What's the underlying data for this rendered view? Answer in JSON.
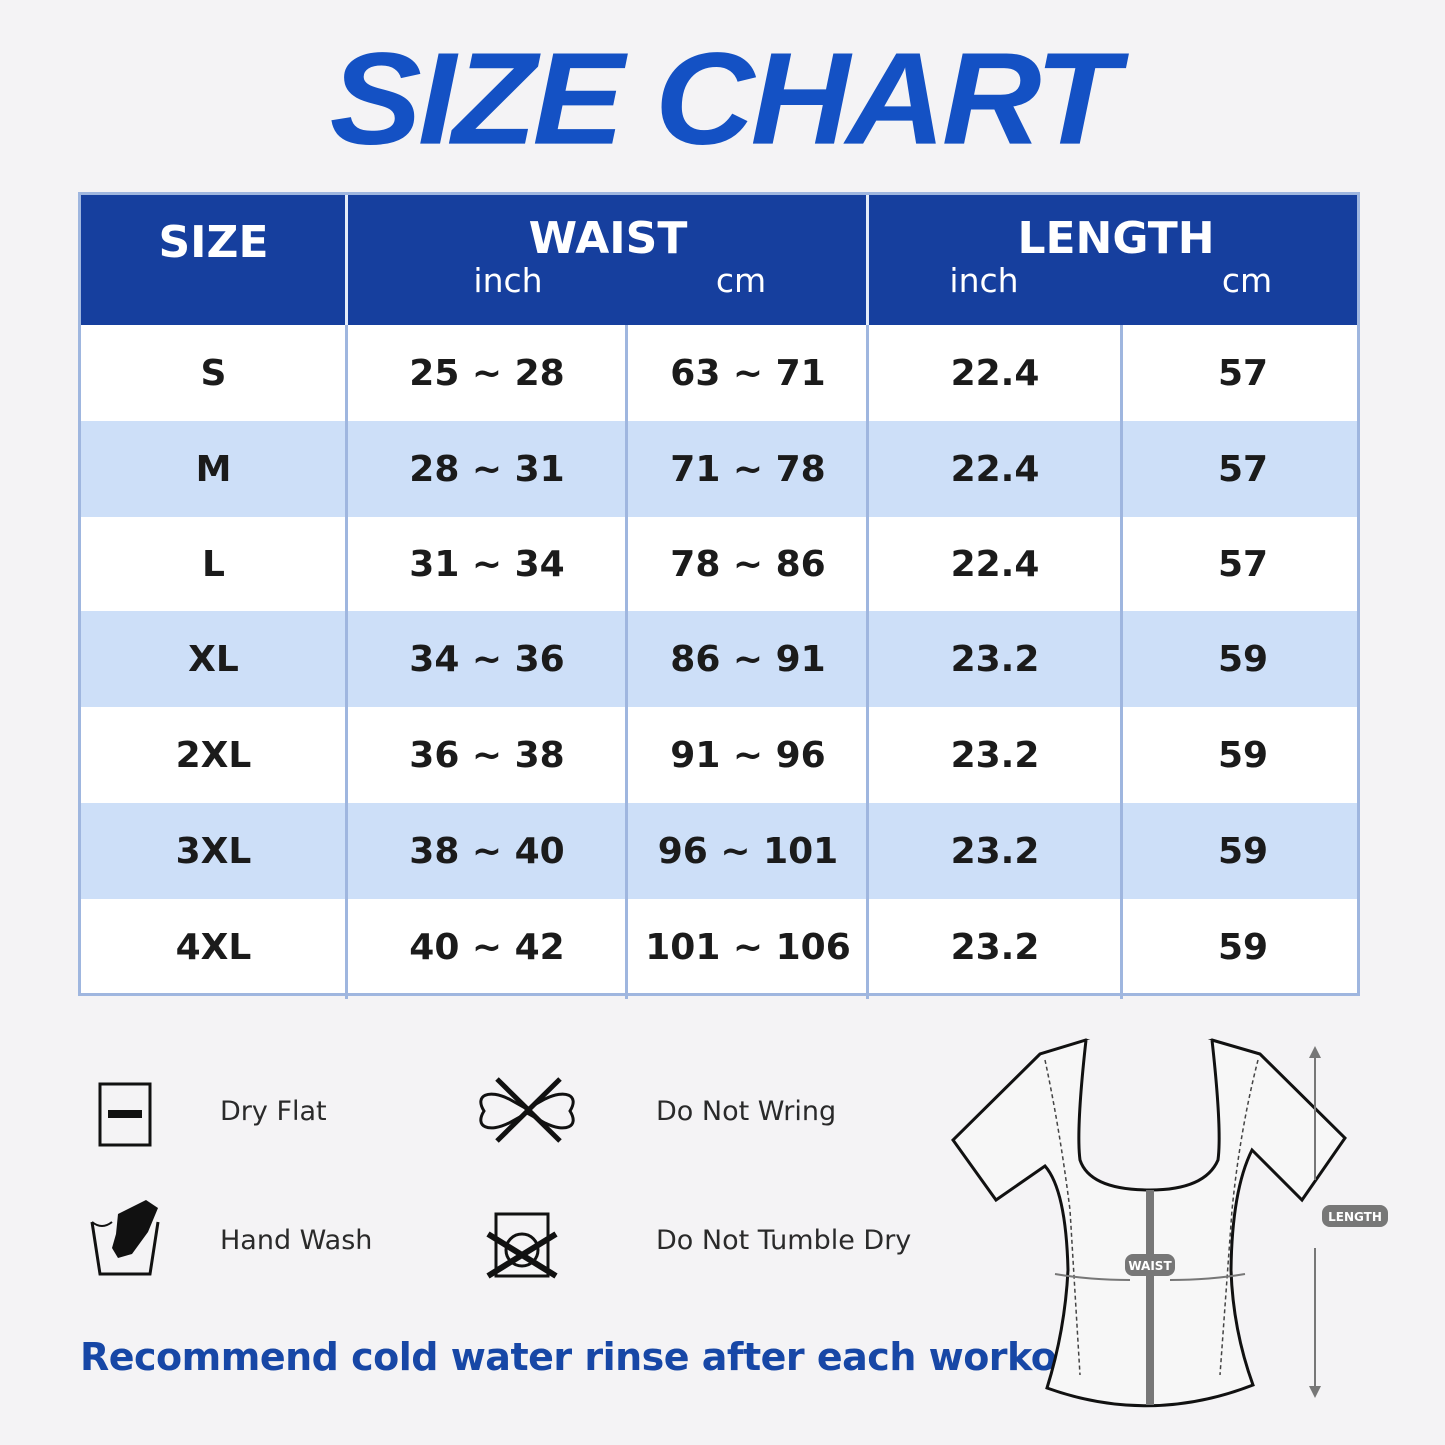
{
  "title": "SIZE CHART",
  "table": {
    "headers": {
      "size": "SIZE",
      "waist": "WAIST",
      "length": "LENGTH",
      "inch": "inch",
      "cm": "cm"
    },
    "rows": [
      {
        "size": "S",
        "waist_inch": "25 ~ 28",
        "waist_cm": "63 ~ 71",
        "length_inch": "22.4",
        "length_cm": "57"
      },
      {
        "size": "M",
        "waist_inch": "28 ~ 31",
        "waist_cm": "71 ~ 78",
        "length_inch": "22.4",
        "length_cm": "57"
      },
      {
        "size": "L",
        "waist_inch": "31 ~ 34",
        "waist_cm": "78 ~ 86",
        "length_inch": "22.4",
        "length_cm": "57"
      },
      {
        "size": "XL",
        "waist_inch": "34 ~ 36",
        "waist_cm": "86 ~ 91",
        "length_inch": "23.2",
        "length_cm": "59"
      },
      {
        "size": "2XL",
        "waist_inch": "36 ~ 38",
        "waist_cm": "91 ~ 96",
        "length_inch": "23.2",
        "length_cm": "59"
      },
      {
        "size": "3XL",
        "waist_inch": "38 ~ 40",
        "waist_cm": "96 ~ 101",
        "length_inch": "23.2",
        "length_cm": "59"
      },
      {
        "size": "4XL",
        "waist_inch": "40 ~ 42",
        "waist_cm": "101 ~ 106",
        "length_inch": "23.2",
        "length_cm": "59"
      }
    ]
  },
  "care": [
    {
      "icon": "dry-flat-icon",
      "label": "Dry Flat"
    },
    {
      "icon": "do-not-wring-icon",
      "label": "Do Not Wring"
    },
    {
      "icon": "hand-wash-icon",
      "label": "Hand Wash"
    },
    {
      "icon": "do-not-tumble-dry-icon",
      "label": "Do Not Tumble Dry"
    }
  ],
  "diagram": {
    "waist_label": "WAIST",
    "length_label": "LENGTH"
  },
  "note": "Recommend cold water rinse after each workout.",
  "colors": {
    "header": "#163f9e",
    "title": "#1451c4",
    "row_alt": "#cddff8",
    "note": "#1747a6"
  }
}
